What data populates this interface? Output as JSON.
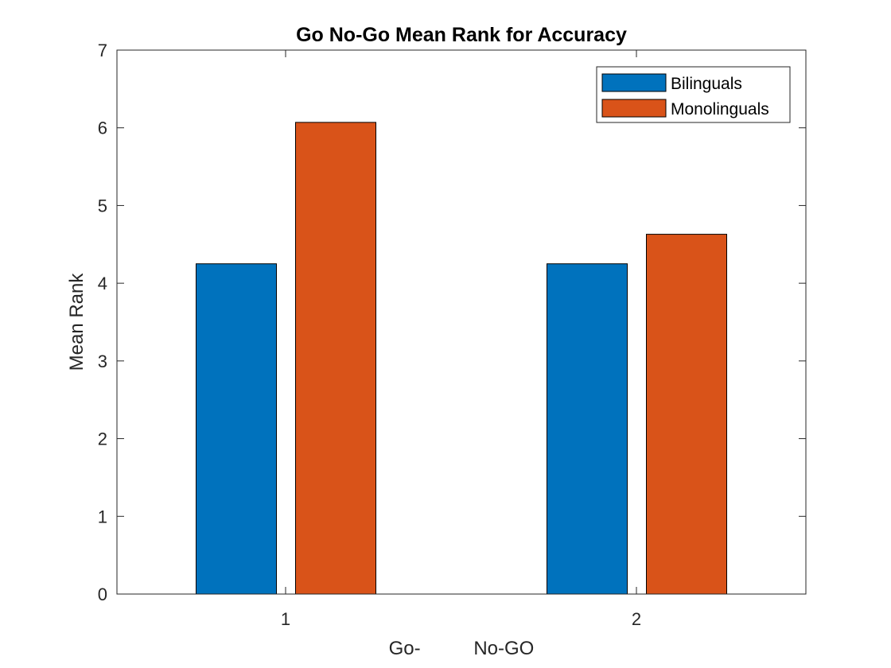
{
  "chart_data": {
    "type": "bar",
    "title": "Go No-Go Mean Rank for Accuracy",
    "xlabel": "Go-          No-GO",
    "ylabel": "Mean Rank",
    "categories": [
      "1",
      "2"
    ],
    "series": [
      {
        "name": "Bilinguals",
        "values": [
          4.25,
          4.25
        ],
        "color": "#0072BD"
      },
      {
        "name": "Monolinguals",
        "values": [
          6.07,
          4.63
        ],
        "color": "#D95319"
      }
    ],
    "ylim": [
      0,
      7
    ],
    "yticks": [
      "0",
      "1",
      "2",
      "3",
      "4",
      "5",
      "6",
      "7"
    ],
    "grid": false,
    "legend_position": "top-right"
  }
}
